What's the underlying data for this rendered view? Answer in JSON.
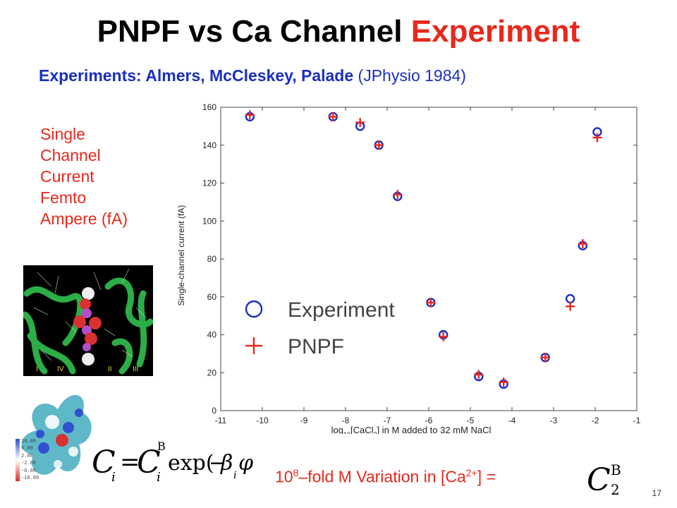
{
  "slide": {
    "title_main": "PNPF vs Ca Channel ",
    "title_highlight": "Experiment",
    "subtitle_bold": "Experiments: Almers, McCleskey, Palade",
    "subtitle_rest": " (JPhysio 1984)",
    "side_label_lines": [
      "Single",
      "Channel",
      "Current",
      "Femto",
      "Ampere (fA)"
    ],
    "variation_prefix": "10",
    "variation_exp": "8",
    "variation_mid": "–fold M Variation in [Ca",
    "variation_ion": "2+",
    "variation_end": "] =",
    "page_number": "17",
    "molecule_labels": [
      "I",
      "IV",
      "II",
      "III"
    ],
    "scale_values": [
      "10.00",
      "6.00",
      "2.00",
      "-2.00",
      "-6.00",
      "-10.00"
    ]
  },
  "colors": {
    "red": "#e8281c",
    "blue": "#1a2fc0"
  },
  "chart_data": {
    "type": "scatter",
    "xlabel": "log10[CaCl2] in M added to 32 mM NaCl",
    "xlabel_parts": {
      "pre": "log",
      "sub1": "10",
      "mid": "[CaCl",
      "sub2": "2",
      "post": "] in M added to 32 mM NaCl"
    },
    "ylabel": "Single-channel current (fA)",
    "xlim": [
      -11,
      -1
    ],
    "ylim": [
      0,
      160
    ],
    "xticks": [
      -11,
      -10,
      -9,
      -8,
      -7,
      -6,
      -5,
      -4,
      -3,
      -2,
      -1
    ],
    "yticks": [
      0,
      20,
      40,
      60,
      80,
      100,
      120,
      140,
      160
    ],
    "grid": false,
    "legend_position": "left-middle",
    "series": [
      {
        "name": "Experiment",
        "marker": "circle",
        "color": "#1a2fc0",
        "points": [
          [
            -10.3,
            155
          ],
          [
            -8.3,
            155
          ],
          [
            -7.65,
            150
          ],
          [
            -7.2,
            140
          ],
          [
            -6.75,
            113
          ],
          [
            -5.95,
            57
          ],
          [
            -5.65,
            40
          ],
          [
            -4.8,
            18
          ],
          [
            -4.2,
            14
          ],
          [
            -3.2,
            28
          ],
          [
            -2.6,
            59
          ],
          [
            -2.3,
            87
          ],
          [
            -1.95,
            147
          ]
        ]
      },
      {
        "name": "PNPF",
        "marker": "plus",
        "color": "#e8281c",
        "points": [
          [
            -10.3,
            156
          ],
          [
            -8.3,
            155
          ],
          [
            -7.65,
            152
          ],
          [
            -7.2,
            140
          ],
          [
            -6.75,
            114
          ],
          [
            -5.95,
            57
          ],
          [
            -5.65,
            39
          ],
          [
            -4.8,
            19
          ],
          [
            -4.2,
            15
          ],
          [
            -3.2,
            28
          ],
          [
            -2.6,
            55
          ],
          [
            -2.3,
            88
          ],
          [
            -1.95,
            144
          ]
        ]
      }
    ]
  }
}
